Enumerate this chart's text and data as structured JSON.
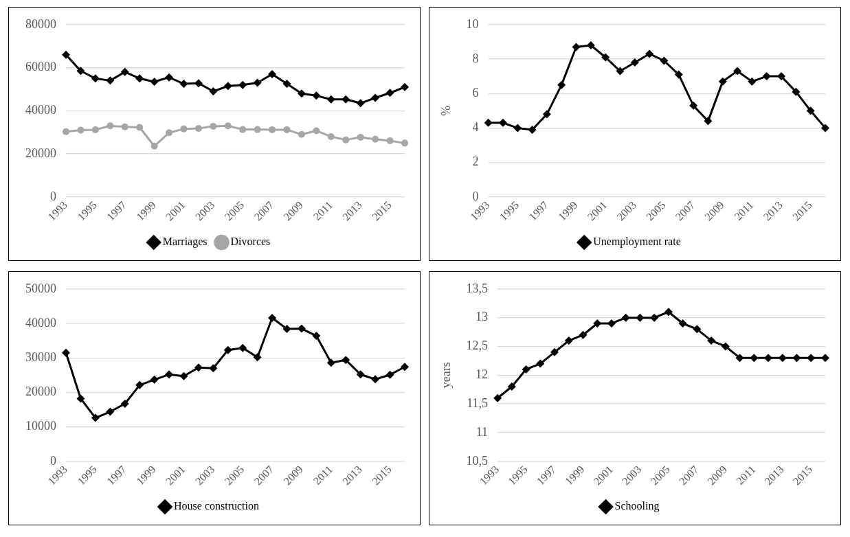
{
  "chart_data": [
    {
      "type": "line",
      "categories": [
        "1993",
        null,
        "1995",
        null,
        "1997",
        null,
        "1999",
        null,
        "2001",
        null,
        "2003",
        null,
        "2005",
        null,
        "2007",
        null,
        "2009",
        null,
        "2011",
        null,
        "2013",
        null,
        "2015",
        null
      ],
      "ylim": [
        0,
        80000
      ],
      "yticks": [
        0,
        20000,
        40000,
        60000,
        80000
      ],
      "grid": "y",
      "legend": "bottom",
      "series": [
        {
          "name": "Marriages",
          "color": "#000000",
          "marker": "diamond",
          "values": [
            66000,
            58500,
            55000,
            54000,
            58000,
            55000,
            53500,
            55500,
            52500,
            52800,
            49000,
            51500,
            52000,
            53000,
            57000,
            52500,
            48000,
            47000,
            45300,
            45300,
            43500,
            46000,
            48300,
            51000
          ]
        },
        {
          "name": "Divorces",
          "color": "#a6a6a6",
          "marker": "circle",
          "values": [
            30300,
            31000,
            31200,
            33000,
            32500,
            32300,
            23600,
            29800,
            31600,
            31800,
            32800,
            33000,
            31300,
            31300,
            31200,
            31200,
            29000,
            30700,
            28000,
            26500,
            27700,
            26800,
            26100,
            25000
          ]
        }
      ]
    },
    {
      "type": "line",
      "categories": [
        "1993",
        null,
        "1995",
        null,
        "1997",
        null,
        "1999",
        null,
        "2001",
        null,
        "2003",
        null,
        "2005",
        null,
        "2007",
        null,
        "2009",
        null,
        "2011",
        null,
        "2013",
        null,
        "2015",
        null
      ],
      "ylabel": "%",
      "ylim": [
        0,
        10
      ],
      "yticks": [
        0,
        2,
        4,
        6,
        8,
        10
      ],
      "grid": "y",
      "legend": "bottom",
      "series": [
        {
          "name": "Unemployment rate",
          "color": "#000000",
          "marker": "diamond",
          "values": [
            4.3,
            4.3,
            4.0,
            3.9,
            4.8,
            6.5,
            8.7,
            8.8,
            8.1,
            7.3,
            7.8,
            8.3,
            7.9,
            7.1,
            5.3,
            4.4,
            6.7,
            7.3,
            6.7,
            7.0,
            7.0,
            6.1,
            5.0,
            4.0
          ]
        }
      ]
    },
    {
      "type": "line",
      "categories": [
        "1993",
        null,
        "1995",
        null,
        "1997",
        null,
        "1999",
        null,
        "2001",
        null,
        "2003",
        null,
        "2005",
        null,
        "2007",
        null,
        "2009",
        null,
        "2011",
        null,
        "2013",
        null,
        "2015",
        null
      ],
      "ylim": [
        0,
        50000
      ],
      "yticks": [
        0,
        10000,
        20000,
        30000,
        40000,
        50000
      ],
      "grid": "y",
      "legend": "bottom",
      "series": [
        {
          "name": "House construction",
          "color": "#000000",
          "marker": "diamond",
          "values": [
            31500,
            18200,
            12600,
            14400,
            16700,
            22100,
            23700,
            25200,
            24700,
            27200,
            27000,
            32300,
            32900,
            30200,
            41600,
            38400,
            38500,
            36400,
            28600,
            29400,
            25200,
            23800,
            25100,
            27400
          ]
        }
      ]
    },
    {
      "type": "line",
      "categories": [
        "1993",
        null,
        "1995",
        null,
        "1997",
        null,
        "1999",
        null,
        "2001",
        null,
        "2003",
        null,
        "2005",
        null,
        "2007",
        null,
        "2009",
        null,
        "2011",
        null,
        "2013",
        null,
        "2015",
        null
      ],
      "ylabel": "years",
      "ylim": [
        10.5,
        13.5
      ],
      "yticks": [
        {
          "value": 10.5,
          "label": "10,5"
        },
        11,
        {
          "value": 11.5,
          "label": "11,5"
        },
        12,
        {
          "value": 12.5,
          "label": "12,5"
        },
        13,
        {
          "value": 13.5,
          "label": "13,5"
        }
      ],
      "grid": "y",
      "legend": "bottom",
      "series": [
        {
          "name": "Schooling",
          "color": "#000000",
          "marker": "diamond",
          "values": [
            11.6,
            11.8,
            12.1,
            12.2,
            12.4,
            12.6,
            12.7,
            12.9,
            12.9,
            13.0,
            13.0,
            13.0,
            13.1,
            12.9,
            12.8,
            12.6,
            12.5,
            12.3,
            12.3,
            12.3,
            12.3,
            12.3,
            12.3,
            12.3
          ]
        }
      ]
    }
  ]
}
